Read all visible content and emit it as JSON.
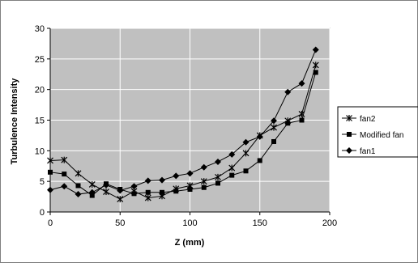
{
  "chart_data": {
    "type": "line",
    "xlabel": "Z (mm)",
    "ylabel": "Turbulence Intensity",
    "xlim": [
      0,
      200
    ],
    "ylim": [
      0,
      30
    ],
    "x_ticks": [
      "0",
      "50",
      "100",
      "150",
      "200"
    ],
    "y_ticks": [
      "0",
      "5",
      "10",
      "15",
      "20",
      "25",
      "30"
    ],
    "grid": true,
    "plot_background": "#c0c0c0",
    "legend_placement": "right",
    "series": [
      {
        "name": "fan2",
        "marker": "star",
        "color": "#000000",
        "points": [
          [
            0,
            8.4
          ],
          [
            10,
            8.5
          ],
          [
            20,
            6.3
          ],
          [
            30,
            4.5
          ],
          [
            40,
            3.3
          ],
          [
            50,
            2.1
          ],
          [
            60,
            3.4
          ],
          [
            70,
            2.3
          ],
          [
            80,
            2.6
          ],
          [
            90,
            3.8
          ],
          [
            100,
            4.3
          ],
          [
            110,
            5.0
          ],
          [
            120,
            5.7
          ],
          [
            130,
            7.2
          ],
          [
            140,
            9.6
          ],
          [
            150,
            12.5
          ],
          [
            160,
            13.8
          ],
          [
            170,
            14.9
          ],
          [
            180,
            16.0
          ],
          [
            190,
            24.0
          ]
        ]
      },
      {
        "name": "Modified fan",
        "marker": "square",
        "color": "#000000",
        "points": [
          [
            0,
            6.5
          ],
          [
            10,
            6.2
          ],
          [
            20,
            4.3
          ],
          [
            30,
            2.7
          ],
          [
            40,
            4.6
          ],
          [
            50,
            3.7
          ],
          [
            60,
            3.0
          ],
          [
            70,
            3.2
          ],
          [
            80,
            3.2
          ],
          [
            90,
            3.4
          ],
          [
            100,
            3.7
          ],
          [
            110,
            4.0
          ],
          [
            120,
            4.7
          ],
          [
            130,
            6.0
          ],
          [
            140,
            6.7
          ],
          [
            150,
            8.4
          ],
          [
            160,
            11.5
          ],
          [
            170,
            14.5
          ],
          [
            180,
            15.0
          ],
          [
            190,
            22.8
          ]
        ]
      },
      {
        "name": "fan1",
        "marker": "diamond",
        "color": "#000000",
        "points": [
          [
            0,
            3.6
          ],
          [
            10,
            4.2
          ],
          [
            20,
            2.9
          ],
          [
            30,
            3.2
          ],
          [
            40,
            4.4
          ],
          [
            50,
            3.5
          ],
          [
            60,
            4.2
          ],
          [
            70,
            5.1
          ],
          [
            80,
            5.2
          ],
          [
            90,
            5.9
          ],
          [
            100,
            6.3
          ],
          [
            110,
            7.3
          ],
          [
            120,
            8.2
          ],
          [
            130,
            9.4
          ],
          [
            140,
            11.4
          ],
          [
            150,
            12.3
          ],
          [
            160,
            14.9
          ],
          [
            170,
            19.6
          ],
          [
            180,
            21.0
          ],
          [
            190,
            26.5
          ]
        ]
      }
    ]
  }
}
